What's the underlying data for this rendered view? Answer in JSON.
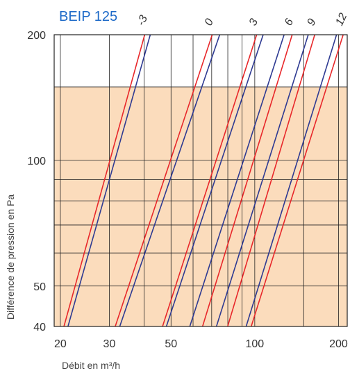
{
  "chart_data": {
    "type": "line",
    "title": "BEIP 125",
    "xlabel": "Débit en m³/h",
    "ylabel": "Différence de pression en Pa",
    "x_scale": "log",
    "y_scale": "log",
    "xlim": [
      19,
      215
    ],
    "ylim": [
      40,
      200
    ],
    "x_ticks": [
      20,
      30,
      50,
      100,
      200
    ],
    "x_tick_labels": [
      "20",
      "30",
      "50",
      "100",
      "200"
    ],
    "y_ticks": [
      40,
      50,
      100,
      200
    ],
    "y_tick_labels": [
      "40",
      "50",
      "100",
      "200"
    ],
    "x_minor_gridlines": [
      40,
      60,
      70,
      80,
      90,
      150
    ],
    "y_minor_gridlines": [
      60,
      70,
      80,
      90,
      150
    ],
    "shaded_region_max_pa": 150,
    "colors": {
      "red": "#e8272a",
      "blue": "#2e3a92",
      "title": "#1e6ac8",
      "shade": "#fbdcbc",
      "grid": "#222222"
    },
    "settings": [
      {
        "label": "-3",
        "red": [
          [
            20.6,
            40
          ],
          [
            40.2,
            200
          ]
        ],
        "blue": [
          [
            21.3,
            40
          ],
          [
            42.1,
            200
          ]
        ]
      },
      {
        "label": "0",
        "red": [
          [
            31.5,
            40
          ],
          [
            70.3,
            200
          ]
        ],
        "blue": [
          [
            32.7,
            40
          ],
          [
            74.8,
            200
          ]
        ]
      },
      {
        "label": "3",
        "red": [
          [
            46.6,
            40
          ],
          [
            101.6,
            200
          ]
        ],
        "blue": [
          [
            48.1,
            40
          ],
          [
            107.2,
            200
          ]
        ]
      },
      {
        "label": "6",
        "red": [
          [
            64.9,
            40
          ],
          [
            136.3,
            200
          ]
        ],
        "blue": [
          [
            58.4,
            40
          ],
          [
            127.5,
            200
          ]
        ]
      },
      {
        "label": "9",
        "red": [
          [
            79.9,
            40
          ],
          [
            164.3,
            200
          ]
        ],
        "blue": [
          [
            72.8,
            40
          ],
          [
            155.7,
            200
          ]
        ]
      },
      {
        "label": "12",
        "red": [
          [
            97.1,
            40
          ],
          [
            207.9,
            200
          ]
        ],
        "blue": [
          [
            93.1,
            40
          ],
          [
            196.8,
            200
          ]
        ]
      }
    ]
  }
}
